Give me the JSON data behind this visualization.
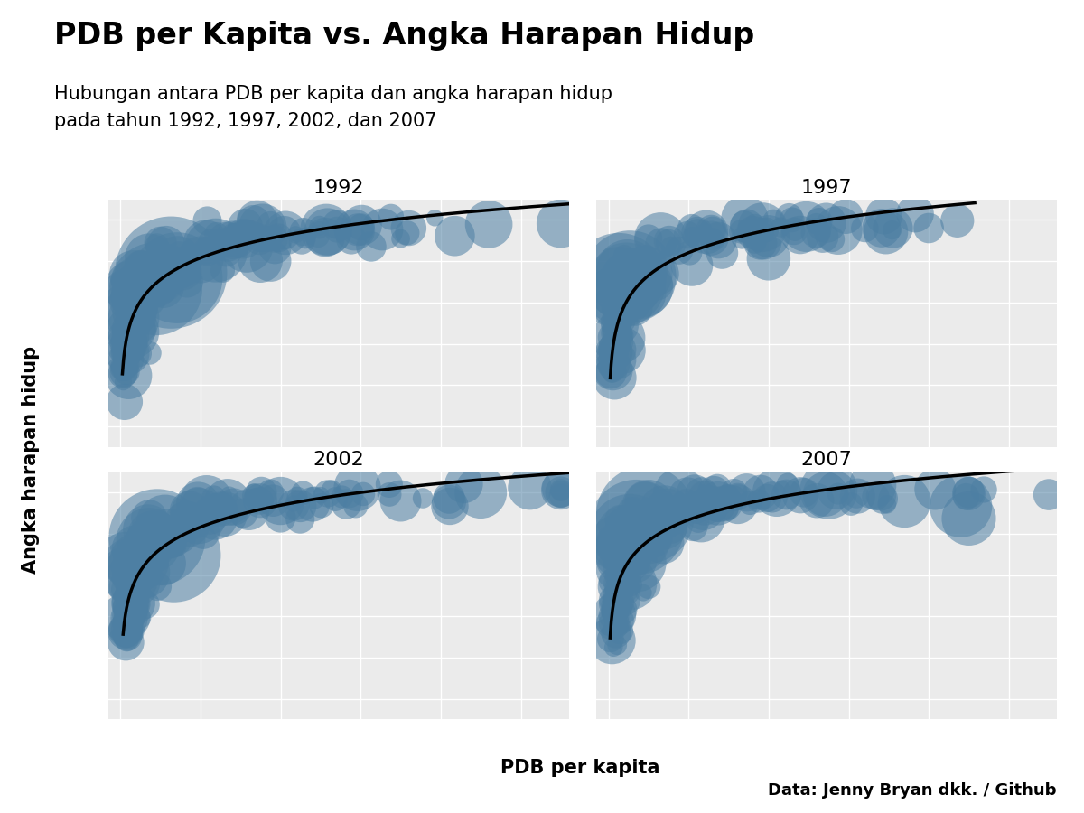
{
  "title": "PDB per Kapita vs. Angka Harapan Hidup",
  "subtitle": "Hubungan antara PDB per kapita dan angka harapan hidup\npada tahun 1992, 1997, 2002, dan 2007",
  "xlabel": "PDB per kapita",
  "ylabel": "Angka harapan hidup",
  "caption": "Data: Jenny Bryan dkk. / Github",
  "years": [
    1992,
    1997,
    2002,
    2007
  ],
  "background_color": "#ffffff",
  "panel_bg": "#ebebeb",
  "grid_color": "#ffffff",
  "bubble_color": "#4d7fa3",
  "bubble_alpha": 0.55,
  "line_color": "#000000",
  "title_fontsize": 24,
  "subtitle_fontsize": 15,
  "label_fontsize": 15,
  "year_fontsize": 16,
  "caption_fontsize": 13
}
